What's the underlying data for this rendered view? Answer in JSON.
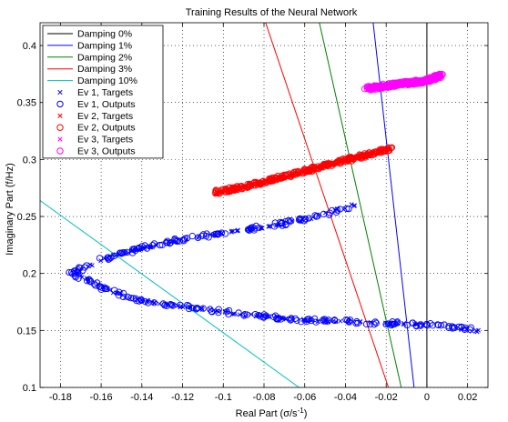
{
  "chart_data": {
    "type": "scatter",
    "title": "Training Results of the Neural Network",
    "xlabel": "Real Part (σ/s",
    "xlabel_sup": "-1",
    "xlabel_close": ")",
    "ylabel": "Imaginary Part (f/Hz)",
    "xlim": [
      -0.19,
      0.03
    ],
    "ylim": [
      0.1,
      0.42
    ],
    "xticks": [
      -0.18,
      -0.16,
      -0.14,
      -0.12,
      -0.1,
      -0.08,
      -0.06,
      -0.04,
      -0.02,
      0,
      0.02
    ],
    "xtick_labels": [
      "-0.18",
      "-0.16",
      "-0.14",
      "-0.12",
      "-0.1",
      "-0.08",
      "-0.06",
      "-0.04",
      "-0.02",
      "0",
      "0.02"
    ],
    "yticks": [
      0.1,
      0.15,
      0.2,
      0.25,
      0.3,
      0.35,
      0.4
    ],
    "ytick_labels": [
      "0.1",
      "0.15",
      "0.2",
      "0.25",
      "0.3",
      "0.35",
      "0.4"
    ],
    "grid": true,
    "legend_position": "top-left",
    "lines": [
      {
        "name": "Damping 0%",
        "color": "#000000",
        "points": [
          [
            0.0,
            0.1
          ],
          [
            0.0,
            0.42
          ]
        ]
      },
      {
        "name": "Damping 1%",
        "color": "#0000ff",
        "points": [
          [
            -0.0264,
            0.42
          ],
          [
            -0.0063,
            0.1
          ]
        ]
      },
      {
        "name": "Damping 2%",
        "color": "#008000",
        "points": [
          [
            -0.0528,
            0.42
          ],
          [
            -0.0126,
            0.1
          ]
        ]
      },
      {
        "name": "Damping 3%",
        "color": "#ff0000",
        "points": [
          [
            -0.0792,
            0.42
          ],
          [
            -0.0189,
            0.1
          ]
        ]
      },
      {
        "name": "Damping 10%",
        "color": "#00bfbf",
        "points": [
          [
            -0.19,
            0.264
          ],
          [
            -0.0628,
            0.1
          ]
        ]
      }
    ],
    "series": [
      {
        "name": "Ev 1, Targets",
        "color": "#0000ff",
        "marker": "x",
        "path": [
          [
            0.027,
            0.149
          ],
          [
            0.0,
            0.155
          ],
          [
            -0.03,
            0.157
          ],
          [
            -0.06,
            0.159
          ],
          [
            -0.09,
            0.164
          ],
          [
            -0.12,
            0.171
          ],
          [
            -0.145,
            0.178
          ],
          [
            -0.16,
            0.188
          ],
          [
            -0.168,
            0.196
          ],
          [
            -0.172,
            0.2
          ],
          [
            -0.168,
            0.205
          ],
          [
            -0.16,
            0.212
          ],
          [
            -0.14,
            0.222
          ],
          [
            -0.12,
            0.23
          ],
          [
            -0.09,
            0.238
          ],
          [
            -0.06,
            0.247
          ],
          [
            -0.045,
            0.255
          ],
          [
            -0.035,
            0.261
          ]
        ]
      },
      {
        "name": "Ev 1, Outputs",
        "color": "#0000ff",
        "marker": "o",
        "path": [
          [
            0.022,
            0.151
          ],
          [
            0.0,
            0.155
          ],
          [
            -0.03,
            0.157
          ],
          [
            -0.06,
            0.159
          ],
          [
            -0.09,
            0.164
          ],
          [
            -0.12,
            0.171
          ],
          [
            -0.145,
            0.178
          ],
          [
            -0.16,
            0.188
          ],
          [
            -0.168,
            0.196
          ],
          [
            -0.176,
            0.2
          ],
          [
            -0.168,
            0.205
          ],
          [
            -0.16,
            0.212
          ],
          [
            -0.14,
            0.222
          ],
          [
            -0.12,
            0.23
          ],
          [
            -0.09,
            0.238
          ],
          [
            -0.06,
            0.247
          ],
          [
            -0.045,
            0.255
          ],
          [
            -0.033,
            0.262
          ]
        ]
      },
      {
        "name": "Ev 2, Targets",
        "color": "#ff0000",
        "marker": "x",
        "path": [
          [
            -0.104,
            0.27
          ],
          [
            -0.09,
            0.276
          ],
          [
            -0.075,
            0.282
          ],
          [
            -0.06,
            0.289
          ],
          [
            -0.045,
            0.297
          ],
          [
            -0.03,
            0.304
          ],
          [
            -0.018,
            0.309
          ]
        ]
      },
      {
        "name": "Ev 2, Outputs",
        "color": "#ff0000",
        "marker": "o",
        "path": [
          [
            -0.104,
            0.271
          ],
          [
            -0.09,
            0.276
          ],
          [
            -0.075,
            0.283
          ],
          [
            -0.06,
            0.29
          ],
          [
            -0.045,
            0.297
          ],
          [
            -0.03,
            0.304
          ],
          [
            -0.018,
            0.31
          ]
        ]
      },
      {
        "name": "Ev 3, Targets",
        "color": "#ff00ff",
        "marker": "x",
        "path": [
          [
            -0.028,
            0.362
          ],
          [
            -0.015,
            0.365
          ],
          [
            0.0,
            0.368
          ],
          [
            0.006,
            0.373
          ]
        ]
      },
      {
        "name": "Ev 3, Outputs",
        "color": "#ff00ff",
        "marker": "o",
        "path": [
          [
            -0.03,
            0.362
          ],
          [
            -0.015,
            0.366
          ],
          [
            0.0,
            0.369
          ],
          [
            0.007,
            0.374
          ]
        ]
      }
    ]
  }
}
